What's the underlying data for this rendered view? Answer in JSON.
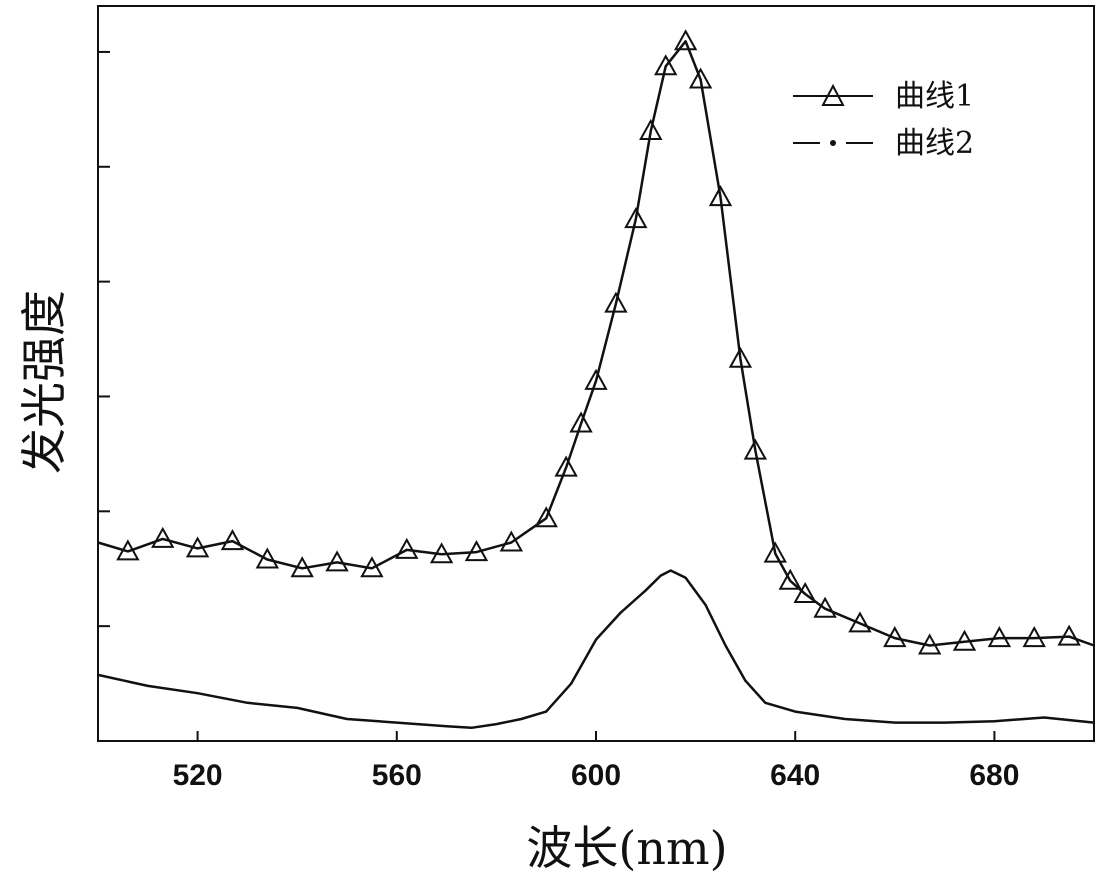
{
  "chart_data": {
    "type": "line",
    "title": "",
    "xlabel": "波长(nm)",
    "ylabel": "发光强度",
    "xlim": [
      500,
      700
    ],
    "ylim": [
      0,
      1
    ],
    "x_ticks": [
      520,
      560,
      600,
      640,
      680
    ],
    "y_tick_labels_shown": false,
    "y_tick_count": 6,
    "grid": false,
    "legend_position": "top-right",
    "series": [
      {
        "name": "曲线1",
        "marker": "triangle",
        "line_style": "solid",
        "color": "#111111",
        "x": [
          500,
          506,
          513,
          520,
          527,
          534,
          541,
          548,
          555,
          562,
          569,
          576,
          583,
          590,
          594,
          597,
          600,
          604,
          608,
          611,
          614,
          618,
          621,
          625,
          629,
          632,
          636,
          639,
          642,
          646,
          653,
          660,
          667,
          674,
          681,
          688,
          695,
          700
        ],
        "y": [
          0.27,
          0.258,
          0.275,
          0.262,
          0.272,
          0.247,
          0.235,
          0.243,
          0.235,
          0.26,
          0.254,
          0.257,
          0.27,
          0.303,
          0.372,
          0.432,
          0.49,
          0.595,
          0.71,
          0.83,
          0.918,
          0.952,
          0.9,
          0.74,
          0.52,
          0.395,
          0.255,
          0.218,
          0.2,
          0.18,
          0.16,
          0.14,
          0.13,
          0.135,
          0.14,
          0.14,
          0.142,
          0.13
        ]
      },
      {
        "name": "曲线2",
        "marker": "none",
        "line_style": "solid",
        "color": "#111111",
        "x": [
          500,
          510,
          520,
          530,
          540,
          550,
          560,
          570,
          575,
          580,
          585,
          590,
          595,
          600,
          605,
          610,
          613,
          615,
          618,
          622,
          626,
          630,
          634,
          640,
          650,
          660,
          670,
          680,
          690,
          700
        ],
        "y": [
          0.09,
          0.075,
          0.065,
          0.052,
          0.045,
          0.03,
          0.025,
          0.02,
          0.018,
          0.023,
          0.03,
          0.04,
          0.078,
          0.138,
          0.175,
          0.205,
          0.225,
          0.232,
          0.222,
          0.185,
          0.13,
          0.082,
          0.052,
          0.04,
          0.03,
          0.025,
          0.025,
          0.027,
          0.032,
          0.025
        ]
      }
    ]
  }
}
